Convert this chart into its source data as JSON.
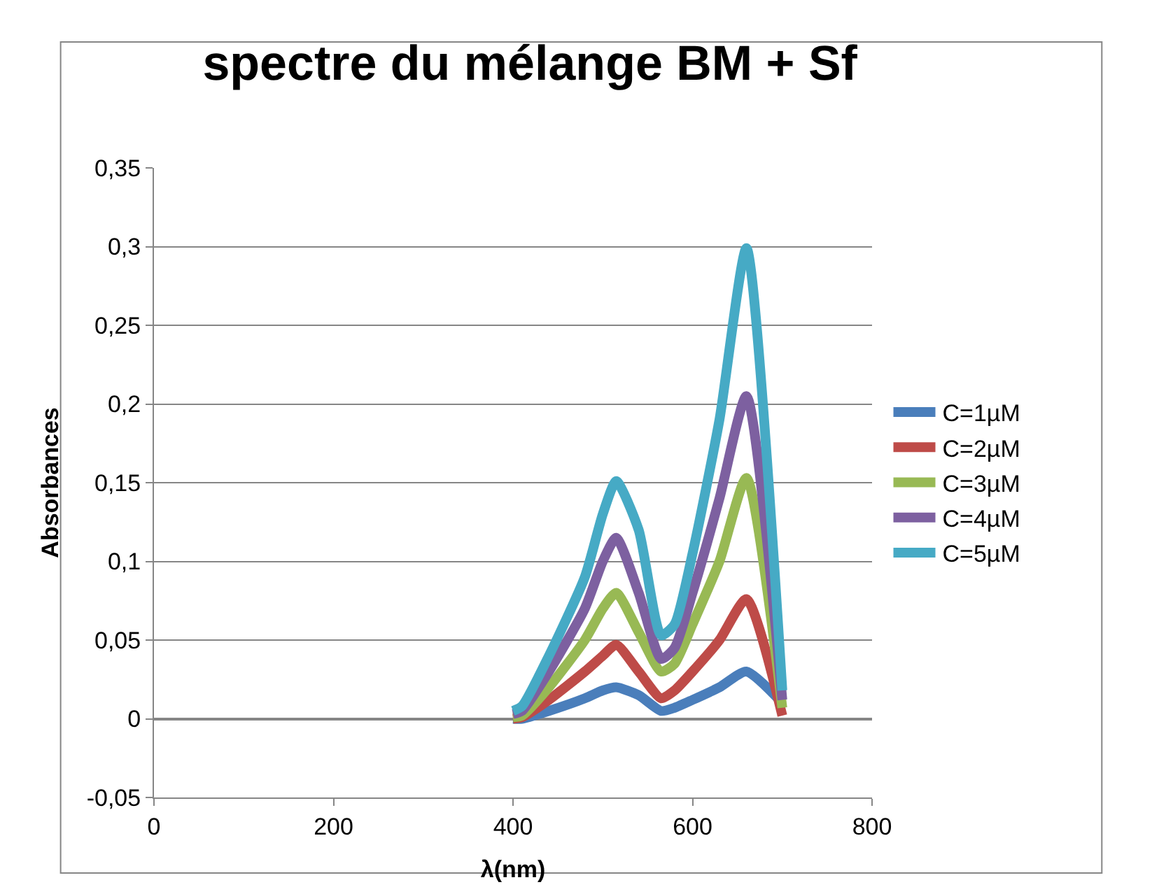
{
  "chart_data": {
    "type": "line",
    "title": "spectre du mélange BM + Sf",
    "xlabel": "λ(nm)",
    "ylabel": "Absorbances",
    "x": [
      400,
      410,
      440,
      480,
      500,
      515,
      540,
      565,
      580,
      600,
      630,
      660,
      700
    ],
    "series": [
      {
        "name": "C=1µM",
        "color": "#4a7ebb",
        "values": [
          0,
          0,
          0.005,
          0.013,
          0.018,
          0.02,
          0.015,
          0.005,
          0.007,
          0.012,
          0.02,
          0.03,
          0.01
        ]
      },
      {
        "name": "C=2µM",
        "color": "#be4b48",
        "values": [
          0,
          0.001,
          0.012,
          0.03,
          0.04,
          0.047,
          0.03,
          0.013,
          0.018,
          0.03,
          0.05,
          0.076,
          0.002
        ]
      },
      {
        "name": "C=3µM",
        "color": "#98b954",
        "values": [
          0.001,
          0.002,
          0.02,
          0.05,
          0.07,
          0.08,
          0.055,
          0.03,
          0.035,
          0.06,
          0.1,
          0.153,
          0.007
        ]
      },
      {
        "name": "C=4µM",
        "color": "#7d60a0",
        "values": [
          0.003,
          0.005,
          0.03,
          0.07,
          0.1,
          0.115,
          0.08,
          0.038,
          0.045,
          0.08,
          0.14,
          0.205,
          0.012
        ]
      },
      {
        "name": "C=5µM",
        "color": "#46aac5",
        "values": [
          0.005,
          0.008,
          0.04,
          0.09,
          0.13,
          0.151,
          0.12,
          0.053,
          0.06,
          0.105,
          0.19,
          0.299,
          0.018
        ]
      }
    ],
    "xlim": [
      0,
      800
    ],
    "xticks": [
      0,
      200,
      400,
      600,
      800
    ],
    "ylim": [
      -0.05,
      0.35
    ],
    "yticks": [
      {
        "value": -0.05,
        "label": "-0,05"
      },
      0,
      {
        "value": 0.05,
        "label": "0,05"
      },
      {
        "value": 0.1,
        "label": "0,1"
      },
      {
        "value": 0.15,
        "label": "0,15"
      },
      {
        "value": 0.2,
        "label": "0,2"
      },
      {
        "value": 0.25,
        "label": "0,25"
      },
      {
        "value": 0.3,
        "label": "0,3"
      },
      {
        "value": 0.35,
        "label": "0,35"
      }
    ],
    "grid": "y",
    "legend": "right",
    "marker": "none",
    "line_style": "solid"
  }
}
